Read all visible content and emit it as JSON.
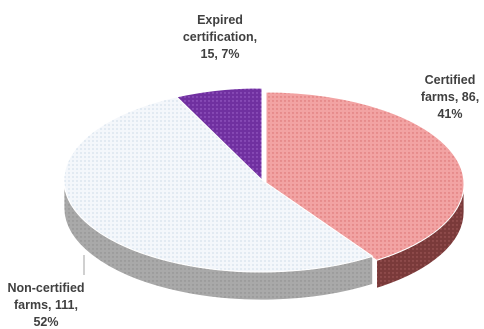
{
  "chart_data": {
    "type": "pie",
    "style": "3d-exploded-tilted",
    "slices": [
      {
        "name": "Certified farms",
        "value": 86,
        "percent": 41,
        "color": "#f2a3a3",
        "side_color": "#7a3a3a",
        "pattern": "fine-dots",
        "label_lines": [
          "Certified",
          "farms, 86,",
          "41%"
        ]
      },
      {
        "name": "Non-certified farms",
        "value": 111,
        "percent": 52,
        "color": "#eef3f8",
        "side_color": "#a8a8a8",
        "pattern": "fine-dots",
        "label_lines": [
          "Non-certified",
          "farms, 111,",
          "52%"
        ]
      },
      {
        "name": "Expired certification",
        "value": 15,
        "percent": 7,
        "color": "#7030a0",
        "side_color": "#4b1f6e",
        "pattern": "fine-dots",
        "label_lines": [
          "Expired",
          "certification,",
          "15, 7%"
        ]
      }
    ],
    "title": "",
    "legend": "none"
  }
}
